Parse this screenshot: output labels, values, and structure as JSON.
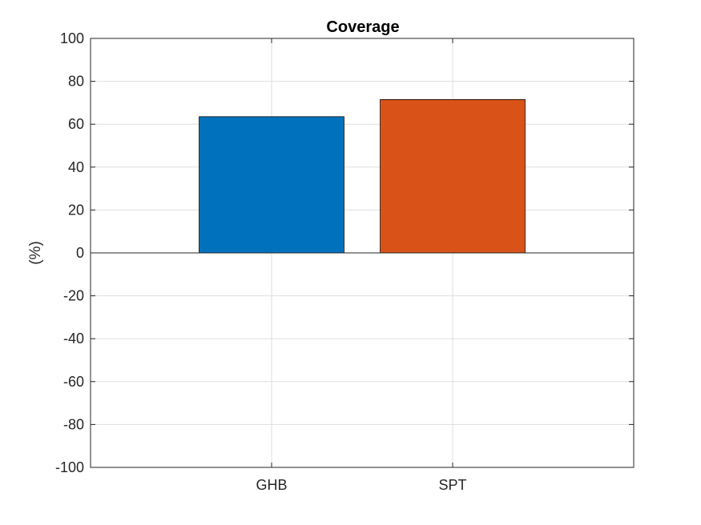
{
  "chart_data": {
    "type": "bar",
    "title": "Coverage",
    "xlabel": "",
    "ylabel": "(%)",
    "categories": [
      "GHB",
      "SPT"
    ],
    "values": [
      63.5,
      71.5
    ],
    "bar_colors": [
      "#0072BD",
      "#D95319"
    ],
    "ylim": [
      -100,
      100
    ],
    "yticks": [
      -100,
      -80,
      -60,
      -40,
      -20,
      0,
      20,
      40,
      60,
      80,
      100
    ],
    "grid": true,
    "legend": "none"
  }
}
